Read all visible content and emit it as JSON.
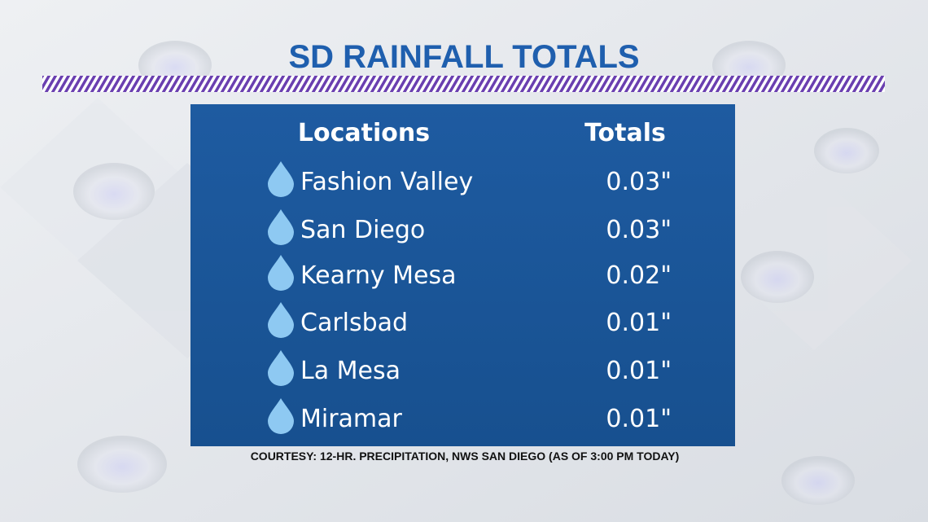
{
  "header": {
    "title": "SD RAINFALL TOTALS"
  },
  "table": {
    "columns": [
      "Locations",
      "Totals"
    ],
    "rows": [
      [
        "Fashion Valley",
        "0.03\""
      ],
      [
        "San Diego",
        "0.03\""
      ],
      [
        "Kearny Mesa",
        "0.02\""
      ],
      [
        "Carlsbad",
        "0.01\""
      ],
      [
        "La Mesa",
        "0.01\""
      ],
      [
        "Miramar",
        "0.01\""
      ]
    ]
  },
  "footer": {
    "note": "COURTESY: 12-HR. PRECIPITATION, NWS SAN DIEGO (AS OF 3:00 PM TODAY)"
  }
}
